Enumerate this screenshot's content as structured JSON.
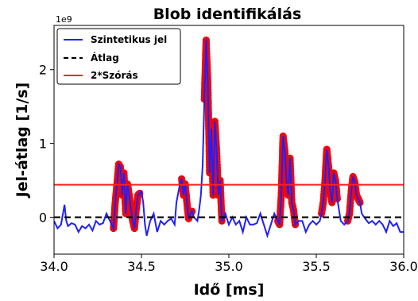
{
  "chart_data": {
    "type": "line",
    "title": "Blob identifikálás",
    "xlabel": "Idő [ms]",
    "ylabel": "Jel-átlag [1/s]",
    "y_multiplier_label": "1e9",
    "xlim": [
      34.0,
      36.0
    ],
    "ylim": [
      -0.5,
      2.6
    ],
    "xticks": [
      34.0,
      34.5,
      35.0,
      35.5,
      36.0
    ],
    "xtick_labels": [
      "34.0",
      "34.5",
      "35.0",
      "35.5",
      "36.0"
    ],
    "yticks": [
      0,
      1,
      2
    ],
    "ytick_labels": [
      "0",
      "1",
      "2"
    ],
    "grid": false,
    "legend_position": "top-left",
    "colors": {
      "signal": "#1f1fff",
      "mean": "#000000",
      "std": "#ff2020",
      "marker_fill": "#c0182a",
      "marker_edge": "#ff0000"
    },
    "series": [
      {
        "name": "Szintetikus jel",
        "style": "solid",
        "x": [
          34.0,
          34.02,
          34.04,
          34.06,
          34.07,
          34.08,
          34.1,
          34.12,
          34.14,
          34.16,
          34.18,
          34.2,
          34.22,
          34.24,
          34.26,
          34.28,
          34.3,
          34.32,
          34.34,
          34.35,
          34.36,
          34.37,
          34.38,
          34.39,
          34.4,
          34.41,
          34.42,
          34.43,
          34.44,
          34.45,
          34.46,
          34.47,
          34.48,
          34.5,
          34.51,
          34.52,
          34.53,
          34.55,
          34.57,
          34.59,
          34.61,
          34.63,
          34.65,
          34.67,
          34.69,
          34.7,
          34.72,
          34.73,
          34.74,
          34.75,
          34.76,
          34.77,
          34.78,
          34.79,
          34.8,
          34.82,
          34.83,
          34.84,
          34.85,
          34.86,
          34.87,
          34.88,
          34.89,
          34.9,
          34.91,
          34.92,
          34.93,
          34.94,
          34.95,
          34.96,
          34.98,
          35.0,
          35.02,
          35.04,
          35.06,
          35.08,
          35.1,
          35.12,
          35.14,
          35.16,
          35.18,
          35.2,
          35.22,
          35.24,
          35.26,
          35.28,
          35.29,
          35.3,
          35.31,
          35.32,
          35.33,
          35.34,
          35.35,
          35.36,
          35.37,
          35.38,
          35.4,
          35.42,
          35.44,
          35.46,
          35.48,
          35.5,
          35.52,
          35.53,
          35.54,
          35.55,
          35.56,
          35.57,
          35.58,
          35.59,
          35.6,
          35.61,
          35.62,
          35.64,
          35.66,
          35.68,
          35.69,
          35.7,
          35.71,
          35.72,
          35.73,
          35.74,
          35.75,
          35.76,
          35.78,
          35.8,
          35.82,
          35.84,
          35.86,
          35.88,
          35.9,
          35.92,
          35.94,
          35.96,
          35.98,
          36.0
        ],
        "y": [
          -0.05,
          -0.15,
          -0.1,
          0.17,
          -0.05,
          -0.12,
          -0.08,
          -0.1,
          -0.2,
          -0.12,
          -0.15,
          -0.1,
          -0.18,
          -0.05,
          -0.1,
          -0.08,
          0.05,
          -0.05,
          -0.15,
          0.2,
          0.45,
          0.72,
          0.68,
          0.3,
          0.6,
          0.05,
          0.45,
          0.3,
          0.1,
          -0.05,
          -0.15,
          0.1,
          0.3,
          0.35,
          0.2,
          -0.1,
          -0.25,
          -0.05,
          0.05,
          -0.2,
          -0.05,
          -0.1,
          -0.05,
          -0.02,
          -0.1,
          0.2,
          0.45,
          0.52,
          0.3,
          0.45,
          0.2,
          -0.02,
          0.05,
          0.08,
          0.0,
          -0.05,
          0.1,
          0.3,
          0.7,
          1.6,
          2.4,
          1.8,
          0.6,
          1.2,
          0.3,
          1.3,
          0.9,
          0.3,
          0.5,
          -0.05,
          0.05,
          -0.1,
          0.0,
          -0.1,
          -0.05,
          -0.2,
          0.0,
          -0.1,
          -0.1,
          -0.08,
          0.05,
          -0.1,
          -0.25,
          -0.1,
          0.05,
          -0.05,
          -0.1,
          0.3,
          1.1,
          0.9,
          0.5,
          0.3,
          0.8,
          0.2,
          0.1,
          -0.1,
          -0.05,
          -0.05,
          -0.2,
          -0.1,
          -0.05,
          -0.1,
          -0.05,
          0.05,
          0.2,
          0.5,
          0.92,
          0.7,
          0.35,
          0.2,
          0.6,
          0.5,
          0.25,
          -0.05,
          -0.1,
          -0.05,
          0.05,
          0.35,
          0.55,
          0.48,
          0.3,
          0.25,
          0.2,
          0.05,
          -0.02,
          -0.08,
          -0.05,
          -0.1,
          -0.05,
          -0.1,
          -0.2,
          -0.05,
          -0.12,
          -0.08,
          -0.2,
          -0.2
        ]
      },
      {
        "name": "Átlag",
        "style": "dashed",
        "y_constant": 0
      },
      {
        "name": "2*Szórás",
        "style": "solid",
        "y_constant": 0.44
      }
    ],
    "blobs": [
      {
        "x_start": 34.34,
        "x_end": 34.49
      },
      {
        "x_start": 34.73,
        "x_end": 34.79
      },
      {
        "x_start": 34.86,
        "x_end": 34.96
      },
      {
        "x_start": 35.28,
        "x_end": 35.38
      },
      {
        "x_start": 35.53,
        "x_end": 35.62
      },
      {
        "x_start": 35.68,
        "x_end": 35.75
      }
    ]
  }
}
